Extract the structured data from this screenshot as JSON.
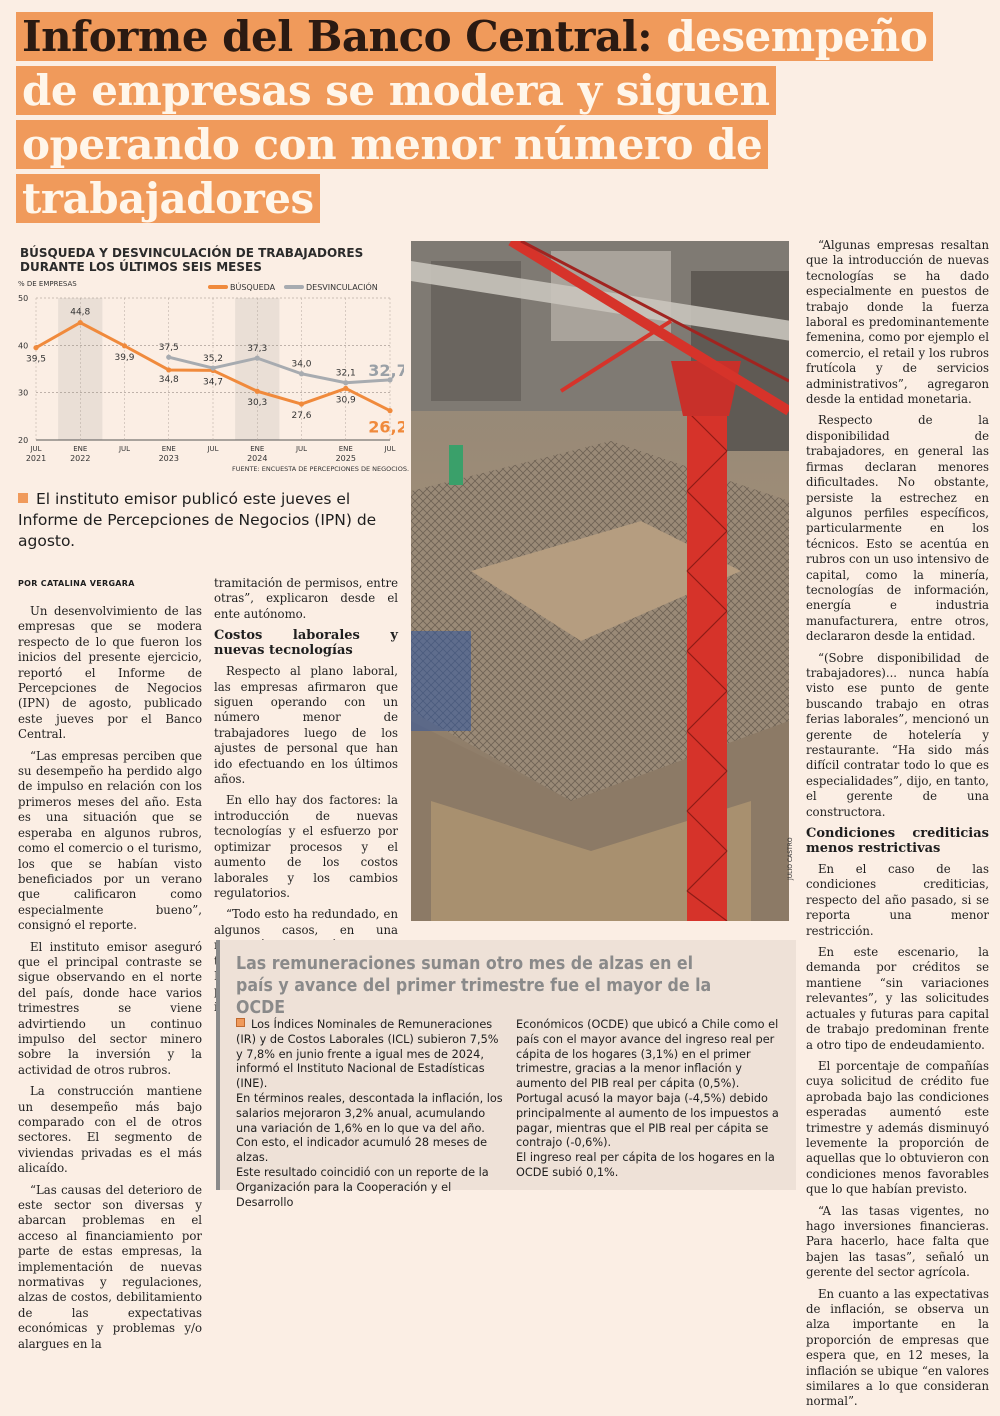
{
  "headline": {
    "dark": "Informe del Banco Central:",
    "light": "desempeño de empresas se modera y siguen operando con menor número de trabajadores"
  },
  "chart_data": {
    "type": "line",
    "title": "BÚSQUEDA Y DESVINCULACIÓN DE TRABAJADORES DURANTE LOS ÚLTIMOS SEIS MESES",
    "ylabel": "% DE EMPRESAS",
    "ylim": [
      20,
      50
    ],
    "yticks": [
      "50",
      "40",
      "30",
      "20"
    ],
    "x_labels": [
      {
        "month": "JUL",
        "year": "2021"
      },
      {
        "month": "ENE",
        "year": "2022"
      },
      {
        "month": "JUL",
        "year": ""
      },
      {
        "month": "ENE",
        "year": "2023"
      },
      {
        "month": "JUL",
        "year": ""
      },
      {
        "month": "ENE",
        "year": "2024"
      },
      {
        "month": "JUL",
        "year": ""
      },
      {
        "month": "ENE",
        "year": "2025"
      },
      {
        "month": "JUL",
        "year": ""
      }
    ],
    "series": [
      {
        "name": "BÚSQUEDA",
        "color": "#f08a3c",
        "start_index": 0,
        "values": [
          39.5,
          44.8,
          39.9,
          34.8,
          34.7,
          30.3,
          27.6,
          30.9,
          26.2
        ],
        "labels": [
          "39,5",
          "44,8",
          "39,9",
          "34,8",
          "34,7",
          "30,3",
          "27,6",
          "30,9",
          "26,2"
        ]
      },
      {
        "name": "DESVINCULACIÓN",
        "color": "#a7abb0",
        "start_index": 3,
        "values": [
          37.5,
          35.2,
          37.3,
          34.0,
          32.1,
          32.7
        ],
        "labels": [
          "37,5",
          "35,2",
          "37,3",
          "34,0",
          "32,1",
          "32,7"
        ]
      }
    ],
    "grid": true,
    "legend_position": "top-right",
    "source": "FUENTE: ENCUESTA DE PERCEPCIONES DE NEGOCIOS."
  },
  "lead": "El instituto emisor publicó este jueves el Informe de Percepciones de Negocios (IPN) de agosto.",
  "byline": "POR CATALINA VERGARA",
  "col1": [
    "Un desenvolvimiento de las empresas que se modera respecto de lo que fueron los inicios del presente ejercicio, reportó el Informe de Percepciones de Negocios (IPN) de agosto, publicado este jueves por el Banco Central.",
    "“Las empresas perciben que su desempeño ha perdido algo de impulso en relación con los primeros meses del año. Esta es una situación que se esperaba en algunos rubros, como el comercio o el turismo, los que se habían visto beneficiados por un verano que calificaron como especialmente bueno”, consignó el reporte.",
    "El instituto emisor aseguró que el principal contraste se sigue observando en el norte del país, donde hace varios trimestres se viene advirtiendo un continuo impulso del sector minero sobre la inversión y la actividad de otros rubros.",
    "La construcción mantiene un desempeño más bajo comparado con el de otros sectores. El segmento de viviendas privadas es el más alicaído.",
    "“Las causas del deterioro de este sector son diversas y abarcan problemas en el acceso al financiamiento por parte de estas empresas, la implementación de nuevas normativas y regulaciones, alzas de costos, debilitamiento de las expectativas económicas y problemas y/o alargues en la"
  ],
  "col2": {
    "cont": "tramitación de permisos, entre otras”, explicaron desde el ente autónomo.",
    "subhead": "Costos laborales y nuevas tecnologías",
    "paras": [
      "Respecto al plano laboral, las empresas afirmaron que siguen operando con un número menor de trabajadores luego de los ajustes de personal que han ido efectuando en los últimos años.",
      "En ello hay dos factores: la introducción de nuevas tecnologías y el esfuerzo por optimizar procesos y el aumento de los costos laborales y los cambios regulatorios.",
      "“Todo esto ha redundado, en algunos casos, en una reducción del número de trabajadores de las empresas. En otros, en un cambio de los perfiles buscados”, dijo el informe."
    ]
  },
  "col3": {
    "paras": [
      "“Algunas empresas resaltan que la introducción de nuevas tecnologías se ha dado especialmente en puestos de trabajo donde la fuerza laboral es predominantemente femenina, como por ejemplo el comercio, el retail y los rubros frutícola y de servicios administrativos”, agregaron desde la entidad monetaria.",
      "Respecto de la disponibilidad de trabajadores, en general las firmas declaran menores dificultades. No obstante, persiste la estrechez en algunos perfiles específicos, particularmente en los técnicos. Esto se acentúa en rubros con un uso intensivo de capital, como la minería, tecnologías de información, energía e industria manufacturera, entre otros, declararon desde la entidad.",
      "“(Sobre disponibilidad de trabajadores)... nunca había visto ese punto de gente buscando trabajo en otras ferias laborales”, mencionó un gerente de hotelería y restaurante. “Ha sido más difícil contratar todo lo que es especialidades”, dijo, en tanto, el gerente de una constructora."
    ],
    "subhead": "Condiciones crediticias menos restrictivas",
    "paras2": [
      "En el caso de las condiciones crediticias, respecto del año pasado, si se reporta una menor restricción.",
      "En este escenario, la demanda por créditos se mantiene “sin variaciones relevantes”, y las solicitudes actuales y futuras para capital de trabajo predominan frente a otro tipo de endeudamiento.",
      "El porcentaje de compañías cuya solicitud de crédito fue aprobada bajo las condiciones esperadas aumentó este trimestre y además disminuyó levemente la proporción de aquellas que lo obtuvieron con condiciones menos favorables que lo que habían previsto.",
      "“A las tasas vigentes, no hago inversiones financieras. Para hacerlo, hace falta que bajen las tasas”, señaló un gerente del sector agrícola.",
      "En cuanto a las expectativas de inflación, se observa un alza importante en la proporción de empresas que espera que, en 12 meses, la inflación se ubique “en valores similares a lo que consideran normal”."
    ]
  },
  "photo_credit": "JULIO CASTRO",
  "box": {
    "title": "Las remuneraciones suman otro mes de alzas en el país y avance del primer trimestre fue el mayor de la OCDE",
    "left": [
      "Los Índices Nominales de Remuneraciones (IR) y de Costos Laborales (ICL) subieron 7,5% y 7,8% en junio frente a igual mes de 2024, informó el Instituto Nacional de Estadísticas (INE).",
      "En términos reales, descontada la inflación, los salarios mejoraron 3,2% anual, acumulando una variación de 1,6% en lo que va del año. Con esto, el indicador acumuló 28 meses de alzas.",
      "Este resultado coincidió con un reporte de la Organización para la Cooperación y el Desarrollo"
    ],
    "right": [
      "Económicos (OCDE) que ubicó a Chile como el país con el mayor avance del ingreso real per cápita de los hogares (3,1%) en el primer trimestre, gracias a la menor inflación y aumento del PIB real per cápita (0,5%). Portugal acusó la mayor baja (-4,5%) debido principalmente al aumento de los impuestos a pagar, mientras que el PIB real per cápita se contrajo (-0,6%).",
      "El ingreso real per cápita de los hogares en la OCDE subió 0,1%."
    ]
  }
}
